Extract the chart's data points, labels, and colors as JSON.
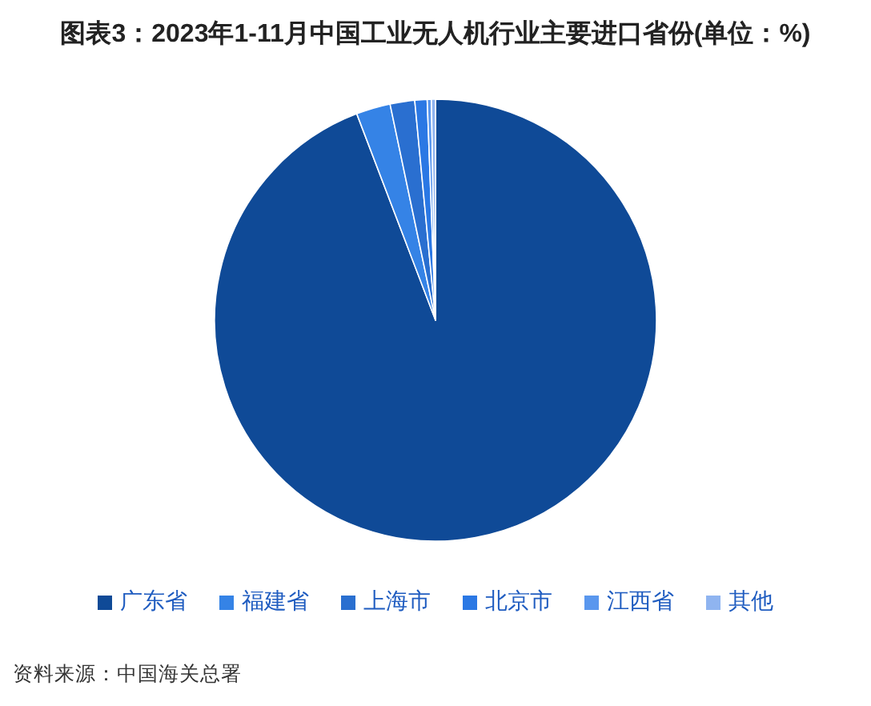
{
  "chart_data": {
    "type": "pie",
    "title": "图表3：2023年1-11月中国工业无人机行业主要进口省份(单位：%)",
    "categories": [
      "广东省",
      "福建省",
      "上海市",
      "北京市",
      "江西省",
      "其他"
    ],
    "values": [
      94.2,
      2.5,
      1.8,
      0.9,
      0.3,
      0.3
    ],
    "colors": [
      "#0f4a97",
      "#3583e6",
      "#2a6fd0",
      "#2b78e4",
      "#5a97ee",
      "#8fb4f0"
    ],
    "legend": "bottom",
    "annotations": [
      "资料来源：中国海关总署"
    ]
  }
}
